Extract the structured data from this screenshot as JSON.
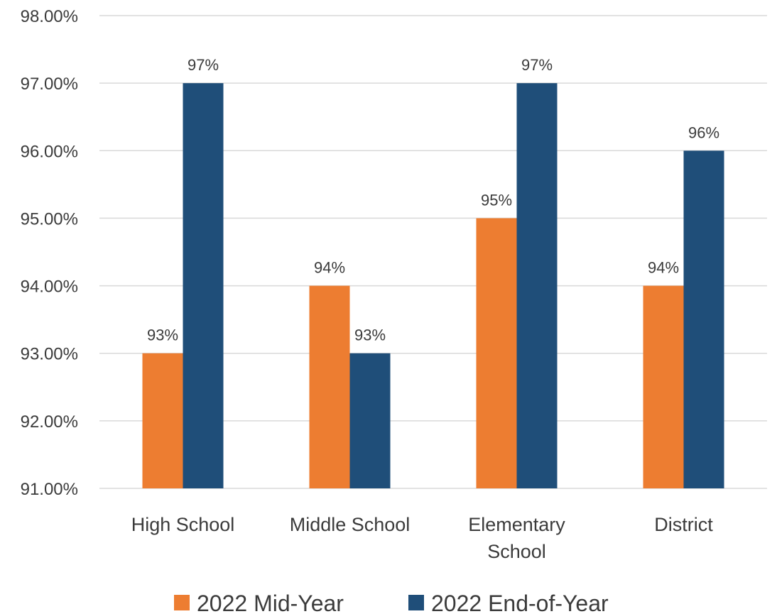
{
  "chart_data": {
    "type": "bar",
    "categories": [
      [
        "High School"
      ],
      [
        "Middle School"
      ],
      [
        "Elementary",
        "School"
      ],
      [
        "District"
      ]
    ],
    "series": [
      {
        "name": "2022 Mid-Year",
        "values": [
          93,
          94,
          95,
          94
        ],
        "labels": [
          "93%",
          "94%",
          "95%",
          "94%"
        ],
        "color": "#ED7D31"
      },
      {
        "name": "2022 End-of-Year",
        "values": [
          97,
          93,
          97,
          96
        ],
        "labels": [
          "97%",
          "93%",
          "97%",
          "96%"
        ],
        "color": "#1F4E79"
      }
    ],
    "ylim": [
      91,
      98
    ],
    "yticks": [
      "91.00%",
      "92.00%",
      "93.00%",
      "94.00%",
      "95.00%",
      "96.00%",
      "97.00%",
      "98.00%"
    ],
    "grid": true,
    "gridcolor": "#d9d9d9",
    "legend_position": "bottom"
  }
}
